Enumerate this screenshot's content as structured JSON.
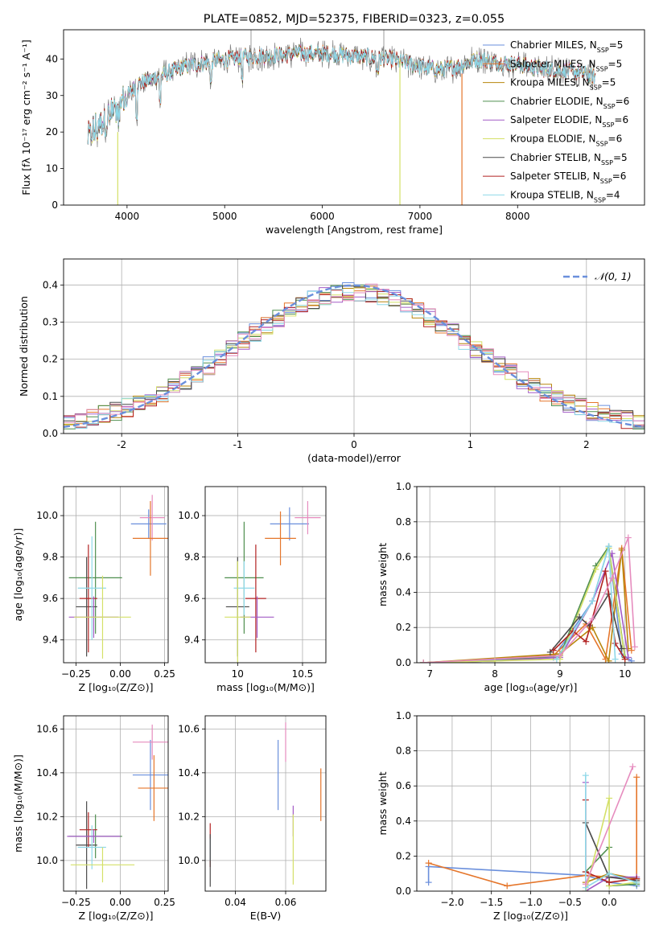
{
  "colors": {
    "chabrier_miles": "#6a8fdc",
    "salpeter_miles": "#e5762b",
    "kroupa_miles": "#b8860b",
    "chabrier_elodie": "#4f8f4f",
    "salpeter_elodie": "#a35cc6",
    "kroupa_elodie": "#d4e068",
    "chabrier_stelib": "#4a4a4a",
    "salpeter_stelib": "#b22222",
    "kroupa_stelib": "#8ed8e8",
    "pink": "#e68cbe",
    "normal": "#6a8fdc"
  },
  "chart_data": [
    {
      "id": "spectrum",
      "type": "line",
      "title": "PLATE=0852, MJD=52375, FIBERID=0323, z=0.055",
      "xlabel": "wavelength [Angstrom, rest frame]",
      "ylabel": "Flux [fλ 10⁻¹⁷ erg cm⁻² s⁻¹ A⁻¹]",
      "xlim": [
        3350,
        9300
      ],
      "ylim": [
        0,
        48
      ],
      "xticks": [
        4000,
        5000,
        6000,
        7000,
        8000
      ],
      "yticks": [
        0,
        10,
        20,
        30,
        40
      ],
      "legend_position": "top-right",
      "legend": [
        {
          "label": "Chabrier MILES, N_SSP=5",
          "color": "#6a8fdc"
        },
        {
          "label": "Salpeter MILES, N_SSP=5",
          "color": "#e5762b"
        },
        {
          "label": "Kroupa MILES, N_SSP=5",
          "color": "#b8860b"
        },
        {
          "label": "Chabrier ELODIE, N_SSP=6",
          "color": "#4f8f4f"
        },
        {
          "label": "Salpeter ELODIE, N_SSP=6",
          "color": "#a35cc6"
        },
        {
          "label": "Kroupa ELODIE, N_SSP=6",
          "color": "#d4e068"
        },
        {
          "label": "Chabrier STELIB, N_SSP=5",
          "color": "#4a4a4a"
        },
        {
          "label": "Salpeter STELIB, N_SSP=6",
          "color": "#b22222"
        },
        {
          "label": "Kroupa STELIB, N_SSP=4",
          "color": "#8ed8e8"
        }
      ],
      "continuum": {
        "x": [
          3600,
          3800,
          3950,
          4100,
          4300,
          4600,
          4900,
          5200,
          5500,
          5800,
          6100,
          6400,
          6700,
          7000,
          7200,
          7400,
          7600,
          7800,
          8000,
          8200,
          8400,
          8600,
          8800
        ],
        "y": [
          18,
          24,
          28,
          33,
          35,
          38,
          39.5,
          40.5,
          41,
          41.5,
          41.5,
          40.5,
          40,
          38,
          37,
          38,
          40,
          39,
          38.5,
          37.5,
          37,
          36.5,
          35
        ]
      }
    },
    {
      "id": "residual_hist",
      "type": "line",
      "xlabel": "(data-model)/error",
      "ylabel": "Normed distribution",
      "xlim": [
        -2.5,
        2.5
      ],
      "ylim": [
        0,
        0.47
      ],
      "xticks": [
        -2,
        -1,
        0,
        1,
        2
      ],
      "yticks": [
        0.0,
        0.1,
        0.2,
        0.3,
        0.4
      ],
      "grid": true,
      "legend_position": "top-right",
      "legend": [
        {
          "label": "𝒩(0, 1)",
          "color": "#6a8fdc",
          "style": "dashed"
        }
      ],
      "normal_curve": {
        "mean": 0,
        "sigma": 1
      }
    },
    {
      "id": "age_vs_Z",
      "type": "scatter",
      "xlabel": "Z [log₁₀(Z/Z⊙)]",
      "ylabel": "age  [log₁₀(age/yr)]",
      "xlim": [
        -0.32,
        0.27
      ],
      "ylim": [
        9.29,
        10.14
      ],
      "xticks": [
        -0.25,
        0.0,
        0.25
      ],
      "xtick_labels": [
        "−0.25",
        "0.00",
        "0.25"
      ],
      "yticks": [
        9.4,
        9.6,
        9.8,
        10.0
      ],
      "grid": true,
      "points": [
        {
          "x": 0.16,
          "y": 9.96,
          "xerr": 0.1,
          "yerr": 0.07,
          "color": "#6a8fdc"
        },
        {
          "x": 0.18,
          "y": 9.99,
          "xerr": 0.07,
          "yerr": 0.11,
          "color": "#e68cbe"
        },
        {
          "x": 0.17,
          "y": 9.89,
          "xerr": 0.1,
          "yerr": 0.18,
          "color": "#e5762b"
        },
        {
          "x": -0.14,
          "y": 9.7,
          "xerr": 0.15,
          "yerr": 0.27,
          "color": "#4f8f4f"
        },
        {
          "x": -0.19,
          "y": 9.56,
          "xerr": 0.06,
          "yerr": 0.24,
          "color": "#4a4a4a"
        },
        {
          "x": -0.18,
          "y": 9.6,
          "xerr": 0.05,
          "yerr": 0.26,
          "color": "#b22222"
        },
        {
          "x": -0.16,
          "y": 9.65,
          "xerr": 0.08,
          "yerr": 0.25,
          "color": "#8ed8e8"
        },
        {
          "x": -0.15,
          "y": 9.51,
          "xerr": 0.14,
          "yerr": 0.1,
          "color": "#a35cc6"
        },
        {
          "x": -0.1,
          "y": 9.51,
          "xerr": 0.16,
          "yerr": 0.2,
          "color": "#d4e068"
        }
      ]
    },
    {
      "id": "age_vs_mass",
      "type": "scatter",
      "xlabel": "mass [log₁₀(M/M⊙)]",
      "xlim": [
        9.75,
        10.68
      ],
      "ylim": [
        9.29,
        10.14
      ],
      "xticks": [
        10.0,
        10.5
      ],
      "yticks": [
        9.4,
        9.6,
        9.8,
        10.0
      ],
      "grid": true,
      "points": [
        {
          "x": 10.4,
          "y": 9.96,
          "xerr": 0.15,
          "yerr": 0.08,
          "color": "#6a8fdc"
        },
        {
          "x": 10.54,
          "y": 9.99,
          "xerr": 0.1,
          "yerr": 0.08,
          "color": "#e68cbe"
        },
        {
          "x": 10.33,
          "y": 9.89,
          "xerr": 0.12,
          "yerr": 0.13,
          "color": "#e5762b"
        },
        {
          "x": 10.05,
          "y": 9.7,
          "xerr": 0.15,
          "yerr": 0.27,
          "color": "#4f8f4f"
        },
        {
          "x": 10.0,
          "y": 9.56,
          "xerr": 0.09,
          "yerr": 0.24,
          "color": "#4a4a4a"
        },
        {
          "x": 10.14,
          "y": 9.6,
          "xerr": 0.08,
          "yerr": 0.26,
          "color": "#b22222"
        },
        {
          "x": 10.05,
          "y": 9.65,
          "xerr": 0.08,
          "yerr": 0.13,
          "color": "#8ed8e8"
        },
        {
          "x": 10.15,
          "y": 9.51,
          "xerr": 0.13,
          "yerr": 0.1,
          "color": "#a35cc6"
        },
        {
          "x": 10.0,
          "y": 9.51,
          "xerr": 0.1,
          "yerr": 0.27,
          "color": "#d4e068"
        }
      ]
    },
    {
      "id": "weight_vs_age",
      "type": "line",
      "xlabel": "age  [log₁₀(age/yr)]",
      "ylabel": "mass weight",
      "xlim": [
        6.8,
        10.3
      ],
      "ylim": [
        0,
        1.0
      ],
      "xticks": [
        7,
        8,
        9,
        10
      ],
      "yticks": [
        0.0,
        0.2,
        0.4,
        0.6,
        0.8,
        1.0
      ],
      "grid": true,
      "series": [
        {
          "color": "#6a8fdc",
          "x": [
            6.9,
            8.9,
            9.5,
            9.75,
            9.95,
            10.1
          ],
          "y": [
            0.0,
            0.03,
            0.35,
            0.66,
            0.05,
            0.01
          ]
        },
        {
          "color": "#e5762b",
          "x": [
            6.9,
            8.9,
            9.4,
            9.7,
            9.95,
            10.1
          ],
          "y": [
            0.0,
            0.04,
            0.22,
            0.02,
            0.65,
            0.07
          ]
        },
        {
          "color": "#b8860b",
          "x": [
            6.9,
            9.0,
            9.5,
            9.75,
            9.95,
            10.05
          ],
          "y": [
            0.0,
            0.05,
            0.2,
            0.01,
            0.64,
            0.08
          ]
        },
        {
          "color": "#4f8f4f",
          "x": [
            6.9,
            8.0,
            9.0,
            9.55,
            9.75,
            10.0
          ],
          "y": [
            0.0,
            0.01,
            0.04,
            0.55,
            0.66,
            0.03
          ]
        },
        {
          "color": "#a35cc6",
          "x": [
            6.9,
            8.0,
            9.0,
            9.5,
            9.8,
            10.05
          ],
          "y": [
            0.0,
            0.01,
            0.03,
            0.35,
            0.62,
            0.03
          ]
        },
        {
          "color": "#d4e068",
          "x": [
            6.9,
            8.0,
            9.0,
            9.55,
            9.75,
            10.0
          ],
          "y": [
            0.0,
            0.01,
            0.02,
            0.53,
            0.65,
            0.02
          ]
        },
        {
          "color": "#4a4a4a",
          "x": [
            8.85,
            9.3,
            9.45,
            9.75,
            9.95
          ],
          "y": [
            0.06,
            0.26,
            0.21,
            0.39,
            0.08
          ]
        },
        {
          "color": "#b22222",
          "x": [
            8.9,
            9.2,
            9.4,
            9.7,
            9.85,
            10.0
          ],
          "y": [
            0.07,
            0.18,
            0.12,
            0.52,
            0.11,
            0.02
          ]
        },
        {
          "color": "#8ed8e8",
          "x": [
            8.95,
            9.5,
            9.75,
            9.85
          ],
          "y": [
            0.02,
            0.35,
            0.66,
            0.02
          ]
        },
        {
          "color": "#e68cbe",
          "x": [
            6.9,
            9.0,
            9.5,
            9.8,
            10.05,
            10.15
          ],
          "y": [
            0.0,
            0.04,
            0.25,
            0.48,
            0.71,
            0.09
          ]
        }
      ]
    },
    {
      "id": "mass_vs_Z",
      "type": "scatter",
      "xlabel": "Z [log₁₀(Z/Z⊙)]",
      "ylabel": "mass [log₁₀(M/M⊙)]",
      "xlim": [
        -0.32,
        0.27
      ],
      "ylim": [
        9.86,
        10.66
      ],
      "xticks": [
        -0.25,
        0.0,
        0.25
      ],
      "xtick_labels": [
        "−0.25",
        "0.00",
        "0.25"
      ],
      "yticks": [
        10.0,
        10.2,
        10.4,
        10.6
      ],
      "grid": true,
      "points": [
        {
          "x": 0.17,
          "y": 10.39,
          "xerr": 0.1,
          "yerr": 0.16,
          "color": "#6a8fdc"
        },
        {
          "x": 0.18,
          "y": 10.54,
          "xerr": 0.11,
          "yerr": 0.08,
          "color": "#e68cbe"
        },
        {
          "x": 0.19,
          "y": 10.33,
          "xerr": 0.09,
          "yerr": 0.15,
          "color": "#e5762b"
        },
        {
          "x": -0.14,
          "y": 10.11,
          "xerr": 0.15,
          "yerr": 0.1,
          "color": "#4f8f4f"
        },
        {
          "x": -0.19,
          "y": 10.07,
          "xerr": 0.06,
          "yerr": 0.2,
          "color": "#4a4a4a"
        },
        {
          "x": -0.18,
          "y": 10.14,
          "xerr": 0.05,
          "yerr": 0.08,
          "color": "#b22222"
        },
        {
          "x": -0.16,
          "y": 10.06,
          "xerr": 0.08,
          "yerr": 0.1,
          "color": "#8ed8e8"
        },
        {
          "x": -0.15,
          "y": 10.11,
          "xerr": 0.15,
          "yerr": 0.03,
          "color": "#a35cc6"
        },
        {
          "x": -0.1,
          "y": 9.98,
          "xerr": 0.18,
          "yerr": 0.08,
          "color": "#d4e068"
        }
      ]
    },
    {
      "id": "mass_vs_ebv",
      "type": "scatter",
      "xlabel": "E(B-V)",
      "xlim": [
        0.028,
        0.076
      ],
      "ylim": [
        9.86,
        10.66
      ],
      "xticks": [
        0.04,
        0.06
      ],
      "yticks": [
        10.0,
        10.2,
        10.4,
        10.6
      ],
      "grid": true,
      "points": [
        {
          "x": 0.057,
          "y": 10.39,
          "yerr": 0.16,
          "color": "#6a8fdc"
        },
        {
          "x": 0.06,
          "y": 10.54,
          "yerr": 0.09,
          "color": "#e68cbe"
        },
        {
          "x": 0.074,
          "y": 10.3,
          "yerr": 0.12,
          "color": "#e5762b"
        },
        {
          "x": 0.03,
          "y": 10.07,
          "yerr": 0.1,
          "color": "#b22222"
        },
        {
          "x": 0.03,
          "y": 10.05,
          "yerr": 0.05,
          "color": "#8ed8e8"
        },
        {
          "x": 0.063,
          "y": 10.18,
          "yerr": 0.07,
          "color": "#a35cc6"
        },
        {
          "x": 0.063,
          "y": 10.05,
          "yerr": 0.16,
          "color": "#d4e068"
        },
        {
          "x": 0.03,
          "y": 10.0,
          "yerr": 0.12,
          "color": "#4a4a4a"
        }
      ]
    },
    {
      "id": "weight_vs_Z",
      "type": "line",
      "xlabel": "Z [log₁₀(Z/Z⊙)]",
      "ylabel": "mass weight",
      "xlim": [
        -2.45,
        0.45
      ],
      "ylim": [
        0,
        1.0
      ],
      "xticks": [
        -2.0,
        -1.5,
        -1.0,
        -0.5,
        0.0
      ],
      "xtick_labels": [
        "−2.0",
        "−1.5",
        "−1.0",
        "−0.5",
        "0.0"
      ],
      "yticks": [
        0.0,
        0.2,
        0.4,
        0.6,
        0.8,
        1.0
      ],
      "grid": true,
      "series": [
        {
          "color": "#6a8fdc",
          "x": [
            -2.3,
            -2.3,
            -0.3,
            0.0,
            0.35
          ],
          "y": [
            0.05,
            0.14,
            0.09,
            0.05,
            0.03
          ]
        },
        {
          "color": "#e5762b",
          "x": [
            -2.3,
            -1.3,
            -0.3,
            0.35,
            0.35
          ],
          "y": [
            0.16,
            0.03,
            0.09,
            0.07,
            0.65
          ]
        },
        {
          "color": "#b8860b",
          "x": [
            -0.3,
            0.0,
            0.35
          ],
          "y": [
            0.05,
            0.1,
            0.07
          ]
        },
        {
          "color": "#4f8f4f",
          "x": [
            -0.3,
            0.0,
            0.0,
            0.35
          ],
          "y": [
            0.11,
            0.25,
            0.03,
            0.04
          ]
        },
        {
          "color": "#a35cc6",
          "x": [
            -0.3,
            -0.3,
            0.0,
            0.35
          ],
          "y": [
            0.62,
            0.0,
            0.08,
            0.08
          ]
        },
        {
          "color": "#d4e068",
          "x": [
            -0.3,
            0.0,
            0.0,
            0.35
          ],
          "y": [
            0.0,
            0.53,
            0.03,
            0.05
          ]
        },
        {
          "color": "#4a4a4a",
          "x": [
            -0.3,
            0.0,
            0.35
          ],
          "y": [
            0.39,
            0.08,
            0.06
          ]
        },
        {
          "color": "#b22222",
          "x": [
            -0.3,
            -0.3,
            0.0,
            0.35
          ],
          "y": [
            0.52,
            0.11,
            0.05,
            0.07
          ]
        },
        {
          "color": "#8ed8e8",
          "x": [
            -0.3,
            -0.3,
            0.0,
            0.35
          ],
          "y": [
            0.66,
            0.02,
            0.1,
            0.05
          ]
        },
        {
          "color": "#e68cbe",
          "x": [
            -0.3,
            0.3
          ],
          "y": [
            0.04,
            0.71
          ]
        }
      ]
    }
  ]
}
